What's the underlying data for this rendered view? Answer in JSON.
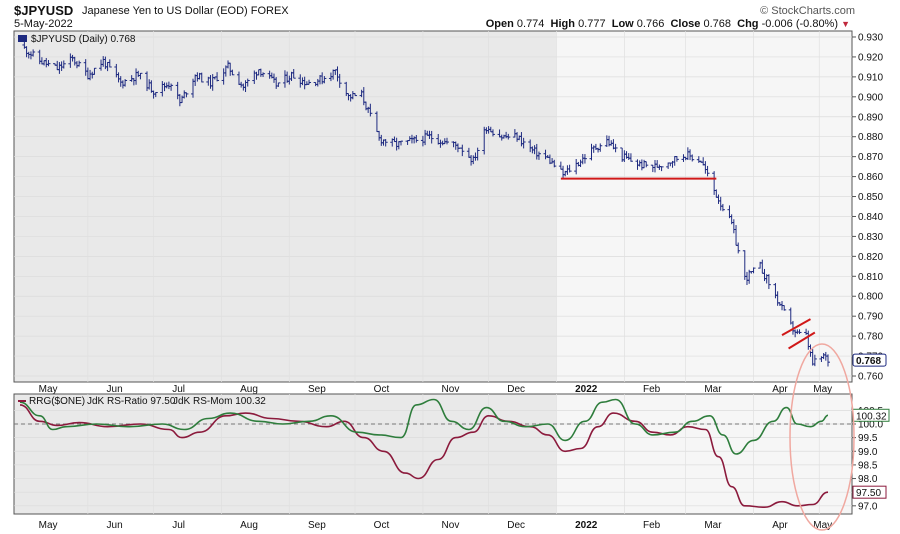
{
  "header": {
    "symbol": "$JPYUSD",
    "description": "Japanese Yen to US Dollar (EOD)  FOREX",
    "date": "5-May-2022",
    "credit": "© StockCharts.com",
    "ohlc": {
      "open_label": "Open",
      "open": "0.774",
      "high_label": "High",
      "high": "0.777",
      "low_label": "Low",
      "low": "0.766",
      "close_label": "Close",
      "close": "0.768",
      "chg_label": "Chg",
      "chg": "-0.006 (-0.80%)"
    }
  },
  "price_legend": "$JPYUSD (Daily) 0.768",
  "last_price_label": "0.768",
  "rrg_legend": {
    "prefix": "RRG($ONE)",
    "ratio": "JdK RS-Ratio 97.50",
    "mom": "JdK RS-Mom 100.32"
  },
  "rrg_last": {
    "mom": "100.32",
    "ratio": "97.50"
  },
  "colors": {
    "price_bar": "#1e2a80",
    "ratio_line": "#8b1a3c",
    "momentum_line": "#2e7d3c",
    "annotation": "#d01818",
    "circle": "#f0a8a0",
    "past_shade": "#e9e9e9",
    "future_shade": "#f6f6f6"
  },
  "chart_data": [
    {
      "type": "ohlc",
      "series_name": "$JPYUSD",
      "ylim": [
        0.757,
        0.933
      ],
      "y_ticks": [
        0.93,
        0.92,
        0.91,
        0.9,
        0.89,
        0.88,
        0.87,
        0.86,
        0.85,
        0.84,
        0.83,
        0.82,
        0.81,
        0.8,
        0.79,
        0.78,
        0.77,
        0.76
      ],
      "y_tick_labels": [
        "0.930",
        "0.920",
        "0.910",
        "0.900",
        "0.890",
        "0.880",
        "0.870",
        "0.860",
        "0.850",
        "0.840",
        "0.830",
        "0.820",
        "0.810",
        "0.800",
        "0.790",
        "0.780",
        "0.770",
        "0.760"
      ],
      "x_labels": [
        "May",
        "Jun",
        "Jul",
        "Aug",
        "Sep",
        "Oct",
        "Nov",
        "Dec",
        "2022",
        "Feb",
        "Mar",
        "Apr",
        "May"
      ],
      "x_range": [
        "2021-05-01",
        "2022-05-05"
      ],
      "close_path": [
        [
          "2021-05-01",
          0.926
        ],
        [
          "2021-05-10",
          0.918
        ],
        [
          "2021-05-18",
          0.914
        ],
        [
          "2021-05-25",
          0.919
        ],
        [
          "2021-06-01",
          0.911
        ],
        [
          "2021-06-08",
          0.918
        ],
        [
          "2021-06-16",
          0.907
        ],
        [
          "2021-06-24",
          0.911
        ],
        [
          "2021-07-01",
          0.903
        ],
        [
          "2021-07-09",
          0.907
        ],
        [
          "2021-07-13",
          0.897
        ],
        [
          "2021-07-20",
          0.911
        ],
        [
          "2021-07-27",
          0.907
        ],
        [
          "2021-08-04",
          0.915
        ],
        [
          "2021-08-11",
          0.905
        ],
        [
          "2021-08-18",
          0.914
        ],
        [
          "2021-08-26",
          0.906
        ],
        [
          "2021-09-02",
          0.911
        ],
        [
          "2021-09-09",
          0.907
        ],
        [
          "2021-09-16",
          0.909
        ],
        [
          "2021-09-22",
          0.913
        ],
        [
          "2021-09-28",
          0.9
        ],
        [
          "2021-10-04",
          0.901
        ],
        [
          "2021-10-12",
          0.879
        ],
        [
          "2021-10-20",
          0.876
        ],
        [
          "2021-10-28",
          0.878
        ],
        [
          "2021-11-04",
          0.88
        ],
        [
          "2021-11-12",
          0.877
        ],
        [
          "2021-11-18",
          0.875
        ],
        [
          "2021-11-24",
          0.868
        ],
        [
          "2021-11-30",
          0.885
        ],
        [
          "2021-12-07",
          0.88
        ],
        [
          "2021-12-14",
          0.88
        ],
        [
          "2021-12-21",
          0.873
        ],
        [
          "2021-12-28",
          0.869
        ],
        [
          "2022-01-04",
          0.861
        ],
        [
          "2022-01-11",
          0.867
        ],
        [
          "2022-01-18",
          0.874
        ],
        [
          "2022-01-24",
          0.878
        ],
        [
          "2022-01-31",
          0.87
        ],
        [
          "2022-02-08",
          0.866
        ],
        [
          "2022-02-15",
          0.865
        ],
        [
          "2022-02-22",
          0.868
        ],
        [
          "2022-03-01",
          0.871
        ],
        [
          "2022-03-08",
          0.868
        ],
        [
          "2022-03-14",
          0.853
        ],
        [
          "2022-03-22",
          0.836
        ],
        [
          "2022-03-28",
          0.809
        ],
        [
          "2022-04-04",
          0.815
        ],
        [
          "2022-04-11",
          0.8
        ],
        [
          "2022-04-18",
          0.785
        ],
        [
          "2022-04-21",
          0.781
        ],
        [
          "2022-04-25",
          0.78
        ],
        [
          "2022-04-28",
          0.766
        ],
        [
          "2022-05-03",
          0.77
        ],
        [
          "2022-05-05",
          0.768
        ]
      ],
      "annotations": [
        {
          "kind": "support-line",
          "price": 0.859,
          "from": "2022-01-03",
          "to": "2022-03-15"
        },
        {
          "kind": "channel-line",
          "from": [
            "2022-04-14",
            0.7805
          ],
          "to": [
            "2022-04-27",
            0.7885
          ]
        },
        {
          "kind": "channel-line",
          "from": [
            "2022-04-17",
            0.7738
          ],
          "to": [
            "2022-04-29",
            0.7818
          ]
        },
        {
          "kind": "ellipse",
          "center": [
            "2022-04-29",
            87.5
          ],
          "note": "highlight of latest bars and RRG lines"
        }
      ]
    },
    {
      "type": "line",
      "ylim": [
        96.7,
        101.1
      ],
      "y_ticks": [
        100.5,
        100.0,
        99.5,
        99.0,
        98.5,
        98.0,
        97.5,
        97.0
      ],
      "y_tick_labels": [
        "100.5",
        "100.0",
        "99.5",
        "99.0",
        "98.5",
        "98.0",
        "97.5",
        "97.0"
      ],
      "reference_line": 100.0,
      "x_labels": [
        "May",
        "Jun",
        "Jul",
        "Aug",
        "Sep",
        "Oct",
        "Nov",
        "Dec",
        "2022",
        "Feb",
        "Mar",
        "Apr",
        "May"
      ],
      "series": [
        {
          "name": "JdK RS-Ratio",
          "points": [
            [
              "2021-05-01",
              100.7
            ],
            [
              "2021-05-10",
              100.1
            ],
            [
              "2021-05-18",
              99.95
            ],
            [
              "2021-05-28",
              100.05
            ],
            [
              "2021-06-10",
              99.9
            ],
            [
              "2021-06-25",
              100.0
            ],
            [
              "2021-07-08",
              99.8
            ],
            [
              "2021-07-14",
              99.5
            ],
            [
              "2021-07-22",
              99.7
            ],
            [
              "2021-08-03",
              100.3
            ],
            [
              "2021-08-12",
              100.4
            ],
            [
              "2021-08-24",
              100.2
            ],
            [
              "2021-09-05",
              100.1
            ],
            [
              "2021-09-18",
              99.9
            ],
            [
              "2021-09-26",
              100.1
            ],
            [
              "2021-10-05",
              99.5
            ],
            [
              "2021-10-14",
              99.0
            ],
            [
              "2021-10-24",
              98.2
            ],
            [
              "2021-10-30",
              98.0
            ],
            [
              "2021-11-08",
              98.7
            ],
            [
              "2021-11-16",
              99.5
            ],
            [
              "2021-11-24",
              99.7
            ],
            [
              "2021-12-01",
              100.3
            ],
            [
              "2021-12-10",
              100.1
            ],
            [
              "2021-12-20",
              99.9
            ],
            [
              "2021-12-28",
              99.6
            ],
            [
              "2022-01-05",
              99.0
            ],
            [
              "2022-01-12",
              99.1
            ],
            [
              "2022-01-20",
              99.9
            ],
            [
              "2022-01-27",
              100.4
            ],
            [
              "2022-02-06",
              100.1
            ],
            [
              "2022-02-14",
              99.7
            ],
            [
              "2022-02-22",
              99.6
            ],
            [
              "2022-03-02",
              99.9
            ],
            [
              "2022-03-10",
              99.8
            ],
            [
              "2022-03-16",
              98.8
            ],
            [
              "2022-03-22",
              97.7
            ],
            [
              "2022-03-28",
              97.0
            ],
            [
              "2022-04-06",
              96.95
            ],
            [
              "2022-04-14",
              97.15
            ],
            [
              "2022-04-21",
              97.0
            ],
            [
              "2022-04-28",
              97.05
            ],
            [
              "2022-05-05",
              97.5
            ]
          ]
        },
        {
          "name": "JdK RS-Mom",
          "points": [
            [
              "2021-05-01",
              100.8
            ],
            [
              "2021-05-10",
              100.3
            ],
            [
              "2021-05-16",
              99.8
            ],
            [
              "2021-05-22",
              99.9
            ],
            [
              "2021-06-05",
              100.0
            ],
            [
              "2021-06-20",
              99.9
            ],
            [
              "2021-07-05",
              100.0
            ],
            [
              "2021-07-15",
              99.8
            ],
            [
              "2021-07-26",
              100.2
            ],
            [
              "2021-08-05",
              100.4
            ],
            [
              "2021-08-18",
              100.1
            ],
            [
              "2021-08-29",
              100.0
            ],
            [
              "2021-09-10",
              100.1
            ],
            [
              "2021-09-20",
              100.3
            ],
            [
              "2021-10-02",
              99.7
            ],
            [
              "2021-10-12",
              99.6
            ],
            [
              "2021-10-22",
              99.5
            ],
            [
              "2021-10-29",
              100.7
            ],
            [
              "2021-11-06",
              100.9
            ],
            [
              "2021-11-14",
              100.1
            ],
            [
              "2021-11-22",
              99.8
            ],
            [
              "2021-11-30",
              100.6
            ],
            [
              "2021-12-08",
              100.1
            ],
            [
              "2021-12-18",
              99.9
            ],
            [
              "2021-12-28",
              100.0
            ],
            [
              "2022-01-05",
              99.4
            ],
            [
              "2022-01-14",
              100.1
            ],
            [
              "2022-01-22",
              100.8
            ],
            [
              "2022-01-28",
              100.9
            ],
            [
              "2022-02-06",
              100.0
            ],
            [
              "2022-02-14",
              99.6
            ],
            [
              "2022-02-24",
              99.7
            ],
            [
              "2022-03-04",
              100.1
            ],
            [
              "2022-03-12",
              100.3
            ],
            [
              "2022-03-18",
              99.6
            ],
            [
              "2022-03-24",
              98.9
            ],
            [
              "2022-04-01",
              99.4
            ],
            [
              "2022-04-10",
              100.1
            ],
            [
              "2022-04-16",
              100.6
            ],
            [
              "2022-04-21",
              100.0
            ],
            [
              "2022-04-27",
              99.9
            ],
            [
              "2022-05-02",
              100.1
            ],
            [
              "2022-05-05",
              100.32
            ]
          ]
        }
      ]
    }
  ]
}
